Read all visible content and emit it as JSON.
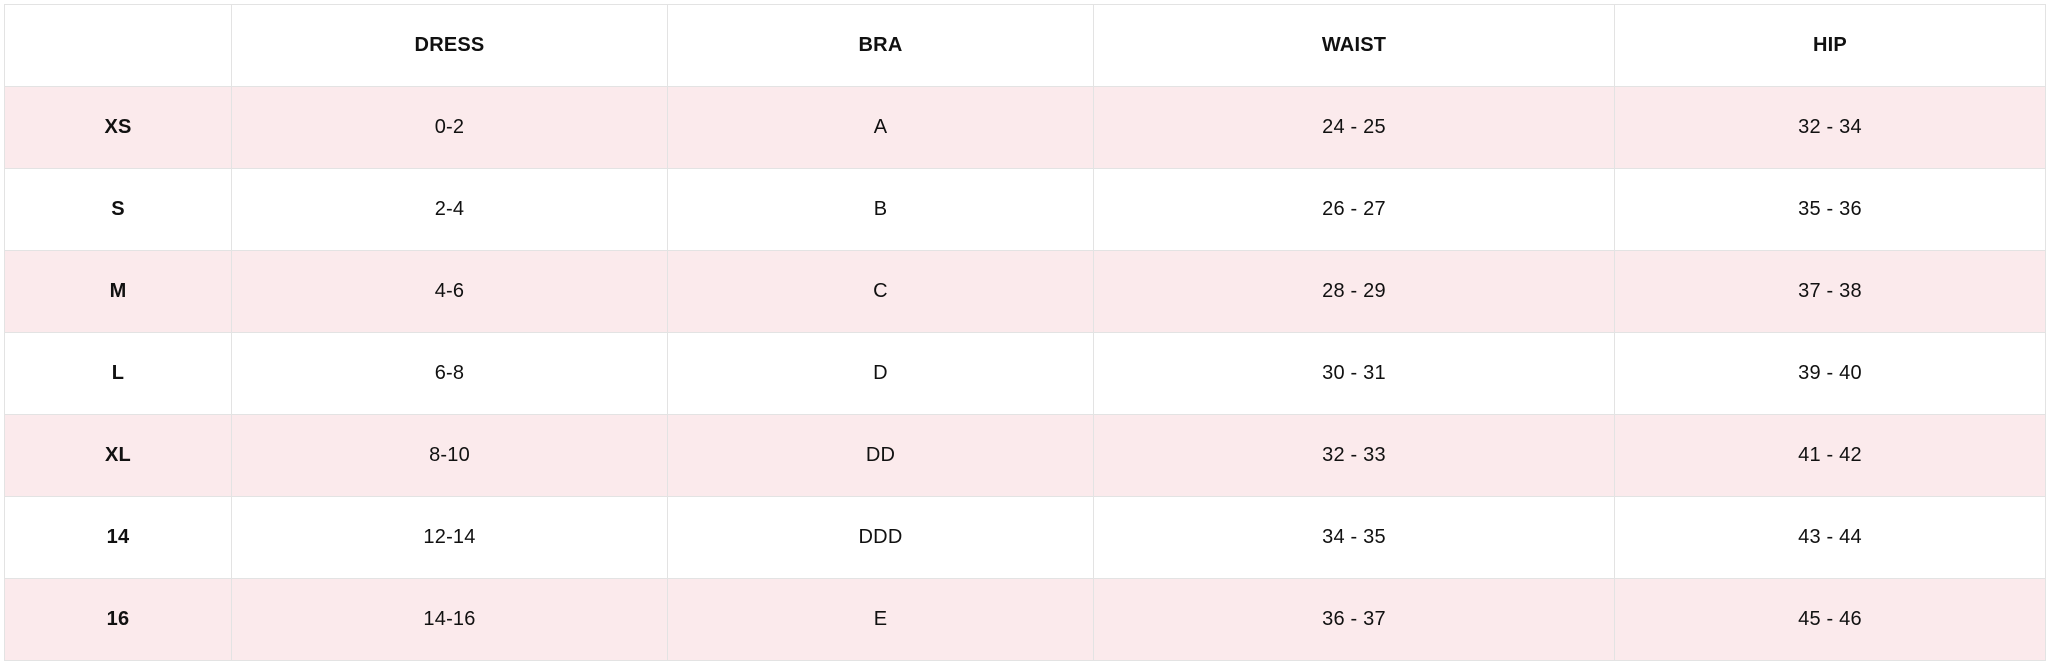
{
  "table": {
    "corner": "",
    "headers": [
      "DRESS",
      "BRA",
      "WAIST",
      "HIP"
    ],
    "rows": [
      {
        "size": "XS",
        "dress": "0-2",
        "bra": "A",
        "waist": "24 - 25",
        "hip": "32 - 34"
      },
      {
        "size": "S",
        "dress": "2-4",
        "bra": "B",
        "waist": "26 - 27",
        "hip": "35 - 36"
      },
      {
        "size": "M",
        "dress": "4-6",
        "bra": "C",
        "waist": "28 - 29",
        "hip": "37 - 38"
      },
      {
        "size": "L",
        "dress": "6-8",
        "bra": "D",
        "waist": "30 - 31",
        "hip": "39 - 40"
      },
      {
        "size": "XL",
        "dress": "8-10",
        "bra": "DD",
        "waist": "32 - 33",
        "hip": "41 - 42"
      },
      {
        "size": "14",
        "dress": "12-14",
        "bra": "DDD",
        "waist": "34 - 35",
        "hip": "43 - 44"
      },
      {
        "size": "16",
        "dress": "14-16",
        "bra": "E",
        "waist": "36 - 37",
        "hip": "45 - 46"
      }
    ]
  },
  "colors": {
    "stripe": "#fbeaec",
    "border": "#e3e3e3",
    "text": "#111111"
  }
}
